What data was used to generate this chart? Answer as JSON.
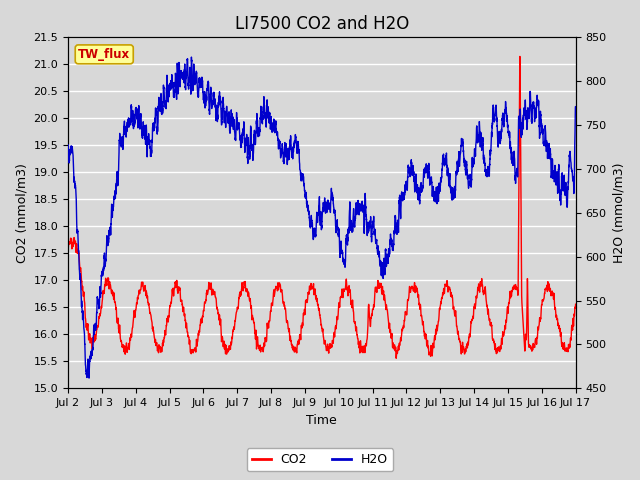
{
  "title": "LI7500 CO2 and H2O",
  "xlabel": "Time",
  "ylabel_left": "CO2 (mmol/m3)",
  "ylabel_right": "H2O (mmol/m3)",
  "co2_color": "#ff0000",
  "h2o_color": "#0000cc",
  "ylim_left": [
    15.0,
    21.5
  ],
  "ylim_right": [
    450,
    850
  ],
  "yticks_left": [
    15.0,
    15.5,
    16.0,
    16.5,
    17.0,
    17.5,
    18.0,
    18.5,
    19.0,
    19.5,
    20.0,
    20.5,
    21.0,
    21.5
  ],
  "yticks_right": [
    450,
    500,
    550,
    600,
    650,
    700,
    750,
    800,
    850
  ],
  "xtick_labels": [
    "Jul 2",
    "Jul 3",
    "Jul 4",
    "Jul 5",
    "Jul 6",
    "Jul 7",
    "Jul 8",
    "Jul 9",
    "Jul 10",
    "Jul 11",
    "Jul 12",
    "Jul 13",
    "Jul 14",
    "Jul 15",
    "Jul 16",
    "Jul 17"
  ],
  "bg_color": "#d8d8d8",
  "plot_bg_color": "#d8d8d8",
  "legend_label": "TW_flux",
  "legend_bg": "#ffff99",
  "legend_border": "#c8a000",
  "title_fontsize": 12,
  "axis_fontsize": 9,
  "tick_fontsize": 8,
  "line_width": 1.0
}
